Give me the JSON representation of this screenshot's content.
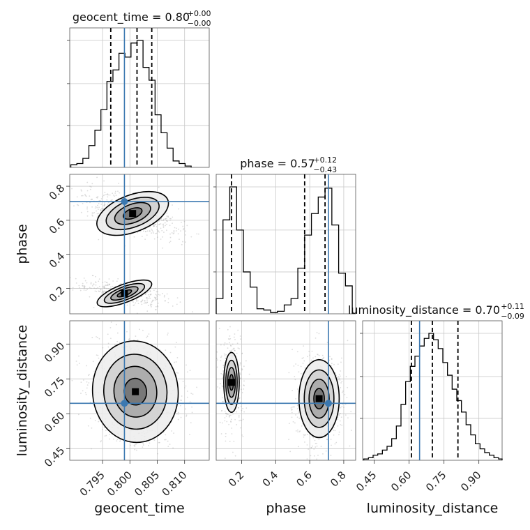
{
  "chart_data": {
    "type": "corner",
    "parameters": [
      "geocent_time",
      "phase",
      "luminosity_distance"
    ],
    "truths": {
      "geocent_time": 0.799,
      "phase": 0.71,
      "luminosity_distance": 0.645
    },
    "axis_ranges": {
      "geocent_time": [
        0.789,
        0.8145
      ],
      "phase": [
        0.05,
        0.87
      ],
      "luminosity_distance": [
        0.4,
        1.0
      ]
    },
    "ticks": {
      "geocent_time": [
        "0.795",
        "0.800",
        "0.805",
        "0.810"
      ],
      "phase": [
        "0.2",
        "0.4",
        "0.6",
        "0.8"
      ],
      "luminosity_distance": [
        "0.45",
        "0.60",
        "0.75",
        "0.90"
      ]
    },
    "titles": {
      "geocent_time": {
        "prefix": "geocent_time = 0.80",
        "sup": "+0.00",
        "sub": "−0.00"
      },
      "phase": {
        "prefix": "phase = 0.57",
        "sup": "+0.12",
        "sub": "−0.43"
      },
      "luminosity_distance": {
        "prefix": "luminosity_distance = 0.70",
        "sup": "+0.11",
        "sub": "−0.09"
      }
    },
    "quantiles": {
      "geocent_time": [
        0.7965,
        0.8013,
        0.804
      ],
      "phase": [
        0.14,
        0.57,
        0.69
      ],
      "luminosity_distance": [
        0.61,
        0.7,
        0.81
      ]
    },
    "histograms": {
      "geocent_time": {
        "edges": [
          0.7892,
          0.7903,
          0.7914,
          0.7925,
          0.7936,
          0.7947,
          0.7958,
          0.7969,
          0.798,
          0.7991,
          0.8002,
          0.8013,
          0.8024,
          0.8035,
          0.8046,
          0.8057,
          0.8068,
          0.8079,
          0.809,
          0.8101,
          0.8112
        ],
        "counts": [
          2,
          3,
          7,
          17,
          29,
          45,
          67,
          76,
          89,
          86,
          97,
          99,
          78,
          68,
          41,
          27,
          15,
          5,
          3,
          1
        ]
      },
      "phase": {
        "edges": [
          0.05,
          0.09,
          0.13,
          0.17,
          0.21,
          0.25,
          0.29,
          0.33,
          0.37,
          0.41,
          0.45,
          0.49,
          0.53,
          0.57,
          0.61,
          0.65,
          0.69,
          0.73,
          0.77,
          0.81,
          0.85
        ],
        "counts": [
          12,
          74,
          100,
          66,
          33,
          21,
          4,
          3,
          1,
          2,
          7,
          12,
          36,
          62,
          79,
          92,
          99,
          70,
          32,
          22
        ]
      },
      "luminosity_distance": {
        "edges": [
          0.405,
          0.425,
          0.445,
          0.465,
          0.485,
          0.505,
          0.525,
          0.545,
          0.565,
          0.585,
          0.605,
          0.625,
          0.645,
          0.665,
          0.685,
          0.705,
          0.725,
          0.745,
          0.765,
          0.785,
          0.805,
          0.825,
          0.845,
          0.865,
          0.885,
          0.905,
          0.925,
          0.945,
          0.965,
          0.985,
          1.005
        ],
        "counts": [
          1,
          2,
          4,
          5,
          8,
          11,
          17,
          27,
          44,
          62,
          74,
          82,
          90,
          96,
          100,
          95,
          88,
          77,
          67,
          56,
          47,
          38,
          28,
          20,
          13,
          9,
          6,
          4,
          2,
          1
        ]
      }
    },
    "joint_densities": {
      "phase_vs_geocent_time": [
        {
          "mx": 0.8005,
          "my": 0.64,
          "sx": 0.0035,
          "sy": 0.055,
          "rho": -0.6,
          "w": 0.68
        },
        {
          "mx": 0.799,
          "my": 0.17,
          "sx": 0.0035,
          "sy": 0.035,
          "rho": -0.6,
          "w": 0.32
        }
      ],
      "luminosity_distance_vs_geocent_time": [
        {
          "mx": 0.801,
          "my": 0.695,
          "sx": 0.0034,
          "sy": 0.095,
          "rho": -0.15,
          "w": 1.0
        }
      ],
      "luminosity_distance_vs_phase": [
        {
          "mx": 0.14,
          "my": 0.735,
          "sx": 0.03,
          "sy": 0.085,
          "rho": 0.0,
          "w": 0.32
        },
        {
          "mx": 0.655,
          "my": 0.665,
          "sx": 0.06,
          "sy": 0.085,
          "rho": 0.0,
          "w": 0.68
        }
      ]
    }
  }
}
